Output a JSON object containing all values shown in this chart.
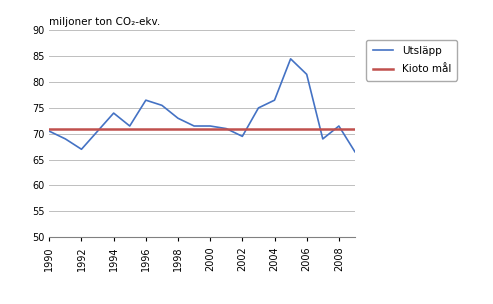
{
  "years": [
    1990,
    1991,
    1992,
    1993,
    1994,
    1995,
    1996,
    1997,
    1998,
    1999,
    2000,
    2001,
    2002,
    2003,
    2004,
    2005,
    2006,
    2007,
    2008,
    2009
  ],
  "emissions": [
    70.5,
    69.0,
    67.0,
    70.5,
    74.0,
    71.5,
    76.5,
    75.5,
    73.0,
    71.5,
    71.5,
    71.0,
    69.5,
    75.0,
    76.5,
    84.5,
    81.5,
    69.0,
    71.5,
    66.5
  ],
  "kioto_value": 71.0,
  "ylabel": "miljoner ton CO₂-ekv.",
  "ylim": [
    50,
    90
  ],
  "yticks": [
    50,
    55,
    60,
    65,
    70,
    75,
    80,
    85,
    90
  ],
  "xticks": [
    1990,
    1992,
    1994,
    1996,
    1998,
    2000,
    2002,
    2004,
    2006,
    2008
  ],
  "line_color": "#4472C4",
  "kioto_color": "#C0504D",
  "legend_utslapp": "Utsläpp",
  "legend_kioto": "Kioto mål",
  "bg_color": "#FFFFFF",
  "plot_bg_color": "#FFFFFF",
  "grid_color": "#BFBFBF"
}
